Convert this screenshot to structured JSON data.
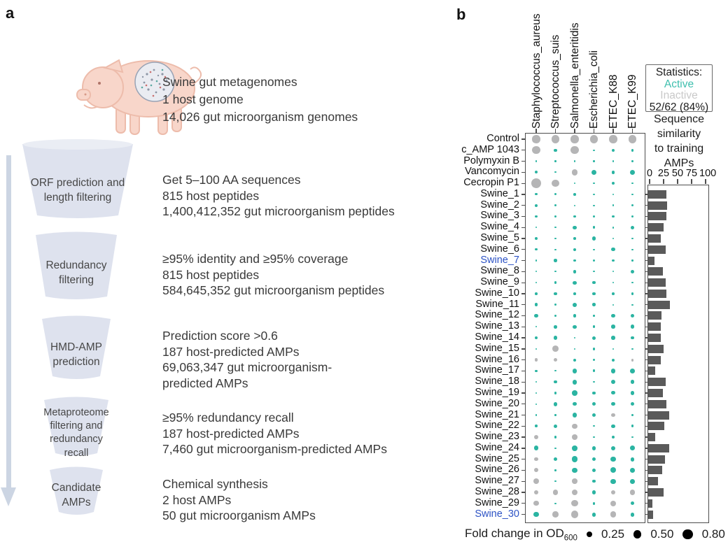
{
  "figure": {
    "panel_a_label": "a",
    "panel_b_label": "b"
  },
  "panel_a": {
    "caption_lines": [
      "Swine gut metagenomes",
      "1 host genome",
      "14,026 gut microorganism genomes"
    ],
    "steps": [
      {
        "funnel_label_lines": [
          "ORF prediction and",
          "length filtering"
        ],
        "text_lines": [
          "Get 5–100 AA sequences",
          "815 host peptides",
          "1,400,412,352 gut microorganism peptides"
        ]
      },
      {
        "funnel_label_lines": [
          "Redundancy",
          "filtering"
        ],
        "text_lines": [
          "≥95% identity and ≥95% coverage",
          "815 host peptides",
          "584,645,352 gut microorganism peptides"
        ]
      },
      {
        "funnel_label_lines": [
          "HMD-AMP",
          "prediction"
        ],
        "text_lines": [
          "Prediction score >0.6",
          "187 host-predicted AMPs",
          "69,063,347 gut microorganism-",
          "predicted AMPs"
        ]
      },
      {
        "funnel_label_lines": [
          "Metaproteome",
          "filtering and",
          "redundancy",
          "recall"
        ],
        "text_lines": [
          "≥95% redundancy recall",
          "187 host-predicted AMPs",
          "7,460 gut microorganism-predicted AMPs"
        ]
      },
      {
        "funnel_label_lines": [
          "Candidate",
          "AMPs"
        ],
        "text_lines": [
          "Chemical synthesis",
          "2 host AMPs",
          "50 gut microorganism AMPs"
        ]
      }
    ]
  },
  "panel_b": {
    "stats_box": {
      "title": "Statistics:",
      "active_label": "Active",
      "inactive_label": "Inactive",
      "summary": "52/62 (84%)"
    },
    "bar_chart_title_lines": [
      "Sequence",
      "similarity",
      "to training",
      "AMPs"
    ],
    "legend": {
      "label": "Fold change in OD",
      "subscript": "600",
      "items": [
        "0.25",
        "0.50",
        "0.80"
      ]
    },
    "colors": {
      "active": "#2bb4a2",
      "inactive": "#b5b5b6",
      "bar": "#5a5a5a",
      "highlight_label": "#2d53c5"
    }
  },
  "chart_data": [
    {
      "type": "scatter",
      "title": "Antimicrobial activity dot matrix (dot size = fold change in OD600; teal = active, gray = inactive)",
      "columns": [
        "Staphylococcus_aureus",
        "Streptococcus_suis",
        "Salmonella_enteritidis",
        "Escherichia_coli",
        "ETEC_K88",
        "ETEC_K99"
      ],
      "size_legend": [
        0.25,
        0.5,
        0.8
      ],
      "highlighted_rows": [
        "Swine_7",
        "Swine_30"
      ],
      "rows": [
        {
          "name": "Control",
          "fold_change": [
            0.5,
            0.5,
            0.5,
            0.5,
            0.5,
            0.5
          ],
          "active": [
            0,
            0,
            0,
            0,
            0,
            0
          ]
        },
        {
          "name": "c_AMP 1043",
          "fold_change": [
            0.5,
            0.08,
            0.5,
            0.02,
            0.08,
            0.05
          ],
          "active": [
            0,
            1,
            0,
            1,
            1,
            1
          ]
        },
        {
          "name": "Polymyxin B",
          "fold_change": [
            0.02,
            0.02,
            0.02,
            0.02,
            0.02,
            0.03
          ],
          "active": [
            1,
            1,
            1,
            1,
            1,
            1
          ]
        },
        {
          "name": "Vancomycin",
          "fold_change": [
            0.06,
            0.02,
            0.28,
            0.22,
            0.08,
            0.22
          ],
          "active": [
            1,
            1,
            0,
            1,
            1,
            1
          ]
        },
        {
          "name": "Cecropin P1",
          "fold_change": [
            0.8,
            0.45,
            0.02,
            0.02,
            0.07,
            0.03
          ],
          "active": [
            0,
            0,
            1,
            1,
            1,
            1
          ]
        },
        {
          "name": "Swine_1",
          "fold_change": [
            0.04,
            0.04,
            0.05,
            0.03,
            0.03,
            0.02
          ],
          "active": [
            1,
            1,
            1,
            1,
            1,
            1
          ]
        },
        {
          "name": "Swine_2",
          "fold_change": [
            0.06,
            0.04,
            0.02,
            0.02,
            0.03,
            0.05
          ],
          "active": [
            1,
            1,
            1,
            1,
            1,
            1
          ]
        },
        {
          "name": "Swine_3",
          "fold_change": [
            0.06,
            0.06,
            0.06,
            0.05,
            0.05,
            0.05
          ],
          "active": [
            1,
            1,
            1,
            1,
            1,
            1
          ]
        },
        {
          "name": "Swine_4",
          "fold_change": [
            0.02,
            0.02,
            0.1,
            0.06,
            0.03,
            0.1
          ],
          "active": [
            1,
            1,
            1,
            1,
            1,
            1
          ]
        },
        {
          "name": "Swine_5",
          "fold_change": [
            0.08,
            0.02,
            0.05,
            0.1,
            0.02,
            0.02
          ],
          "active": [
            1,
            1,
            1,
            1,
            1,
            1
          ]
        },
        {
          "name": "Swine_6",
          "fold_change": [
            0.04,
            0.02,
            0.06,
            0.02,
            0.1,
            0.02
          ],
          "active": [
            1,
            1,
            1,
            1,
            1,
            1
          ]
        },
        {
          "name": "Swine_7",
          "fold_change": [
            0.02,
            0.07,
            0.05,
            0.05,
            0.05,
            0.02
          ],
          "active": [
            1,
            1,
            1,
            1,
            1,
            1
          ]
        },
        {
          "name": "Swine_8",
          "fold_change": [
            0.02,
            0.02,
            0.08,
            0.02,
            0.02,
            0.1
          ],
          "active": [
            1,
            1,
            1,
            1,
            1,
            1
          ]
        },
        {
          "name": "Swine_9",
          "fold_change": [
            0.02,
            0.05,
            0.1,
            0.08,
            0.02,
            0.02
          ],
          "active": [
            1,
            1,
            1,
            1,
            1,
            1
          ]
        },
        {
          "name": "Swine_10",
          "fold_change": [
            0.05,
            0.08,
            0.05,
            0.08,
            0.05,
            0.06
          ],
          "active": [
            1,
            1,
            1,
            1,
            1,
            1
          ]
        },
        {
          "name": "Swine_11",
          "fold_change": [
            0.08,
            0.05,
            0.13,
            0.08,
            0.02,
            0.02
          ],
          "active": [
            1,
            1,
            1,
            1,
            1,
            1
          ]
        },
        {
          "name": "Swine_12",
          "fold_change": [
            0.1,
            0.05,
            0.08,
            0.02,
            0.1,
            0.1
          ],
          "active": [
            1,
            1,
            1,
            1,
            1,
            1
          ]
        },
        {
          "name": "Swine_13",
          "fold_change": [
            0.02,
            0.08,
            0.1,
            0.05,
            0.12,
            0.12
          ],
          "active": [
            1,
            1,
            1,
            1,
            1,
            1
          ]
        },
        {
          "name": "Swine_14",
          "fold_change": [
            0.08,
            0.12,
            0.02,
            0.1,
            0.12,
            0.08
          ],
          "active": [
            1,
            1,
            1,
            1,
            1,
            1
          ]
        },
        {
          "name": "Swine_15",
          "fold_change": [
            0.02,
            0.3,
            0.02,
            0.05,
            0.02,
            0.02
          ],
          "active": [
            1,
            0,
            1,
            1,
            1,
            1
          ]
        },
        {
          "name": "Swine_16",
          "fold_change": [
            0.08,
            0.1,
            0.06,
            0.05,
            0.06,
            0.06
          ],
          "active": [
            0,
            0,
            1,
            1,
            1,
            0
          ]
        },
        {
          "name": "Swine_17",
          "fold_change": [
            0.04,
            0.02,
            0.18,
            0.06,
            0.16,
            0.18
          ],
          "active": [
            1,
            1,
            1,
            1,
            1,
            1
          ]
        },
        {
          "name": "Swine_18",
          "fold_change": [
            0.02,
            0.08,
            0.18,
            0.02,
            0.14,
            0.14
          ],
          "active": [
            1,
            1,
            1,
            1,
            1,
            1
          ]
        },
        {
          "name": "Swine_19",
          "fold_change": [
            0.02,
            0.04,
            0.22,
            0.08,
            0.1,
            0.14
          ],
          "active": [
            1,
            1,
            1,
            1,
            1,
            1
          ]
        },
        {
          "name": "Swine_20",
          "fold_change": [
            0.02,
            0.14,
            0.12,
            0.1,
            0.12,
            0.1
          ],
          "active": [
            1,
            1,
            1,
            1,
            1,
            1
          ]
        },
        {
          "name": "Swine_21",
          "fold_change": [
            0.02,
            0.02,
            0.18,
            0.14,
            0.14,
            0.03
          ],
          "active": [
            1,
            1,
            1,
            1,
            0,
            1
          ]
        },
        {
          "name": "Swine_22",
          "fold_change": [
            0.05,
            0.1,
            0.22,
            0.02,
            0.1,
            0.05
          ],
          "active": [
            1,
            1,
            0,
            1,
            1,
            1
          ]
        },
        {
          "name": "Swine_23",
          "fold_change": [
            0.18,
            0.06,
            0.22,
            0.02,
            0.06,
            0.02
          ],
          "active": [
            0,
            1,
            0,
            1,
            1,
            1
          ]
        },
        {
          "name": "Swine_24",
          "fold_change": [
            0.18,
            0.02,
            0.22,
            0.14,
            0.14,
            0.18
          ],
          "active": [
            1,
            1,
            1,
            1,
            1,
            1
          ]
        },
        {
          "name": "Swine_25",
          "fold_change": [
            0.1,
            0.12,
            0.28,
            0.12,
            0.2,
            0.14
          ],
          "active": [
            0,
            1,
            1,
            1,
            1,
            1
          ]
        },
        {
          "name": "Swine_26",
          "fold_change": [
            0.14,
            0.02,
            0.22,
            0.12,
            0.25,
            0.18
          ],
          "active": [
            0,
            1,
            1,
            1,
            1,
            1
          ]
        },
        {
          "name": "Swine_27",
          "fold_change": [
            0.28,
            0.02,
            0.22,
            0.08,
            0.2,
            0.18
          ],
          "active": [
            0,
            1,
            0,
            1,
            1,
            1
          ]
        },
        {
          "name": "Swine_28",
          "fold_change": [
            0.18,
            0.22,
            0.28,
            0.12,
            0.14,
            0.22
          ],
          "active": [
            0,
            0,
            0,
            1,
            0,
            0
          ]
        },
        {
          "name": "Swine_29",
          "fold_change": [
            0.22,
            0.02,
            0.35,
            0.06,
            0.28,
            0.1
          ],
          "active": [
            0,
            1,
            0,
            1,
            0,
            1
          ]
        },
        {
          "name": "Swine_30",
          "fold_change": [
            0.22,
            0.28,
            0.4,
            0.14,
            0.28,
            0.14
          ],
          "active": [
            1,
            0,
            0,
            1,
            0,
            1
          ]
        }
      ]
    },
    {
      "type": "bar",
      "title": "Sequence similarity to training AMPs",
      "xlabel": "Sequence similarity (%)",
      "xlim": [
        0,
        100
      ],
      "ticks": [
        0,
        25,
        50,
        75,
        100
      ],
      "categories": [
        "Swine_1",
        "Swine_2",
        "Swine_3",
        "Swine_4",
        "Swine_5",
        "Swine_6",
        "Swine_7",
        "Swine_8",
        "Swine_9",
        "Swine_10",
        "Swine_11",
        "Swine_12",
        "Swine_13",
        "Swine_14",
        "Swine_15",
        "Swine_16",
        "Swine_17",
        "Swine_18",
        "Swine_19",
        "Swine_20",
        "Swine_21",
        "Swine_22",
        "Swine_23",
        "Swine_24",
        "Swine_25",
        "Swine_26",
        "Swine_27",
        "Swine_28",
        "Swine_29",
        "Swine_30"
      ],
      "values": [
        33,
        34,
        32,
        27,
        23,
        31,
        11,
        26,
        31,
        33,
        39,
        24,
        22,
        23,
        27,
        23,
        12,
        31,
        26,
        33,
        37,
        29,
        13,
        37,
        30,
        25,
        17,
        27,
        8,
        9
      ]
    }
  ]
}
